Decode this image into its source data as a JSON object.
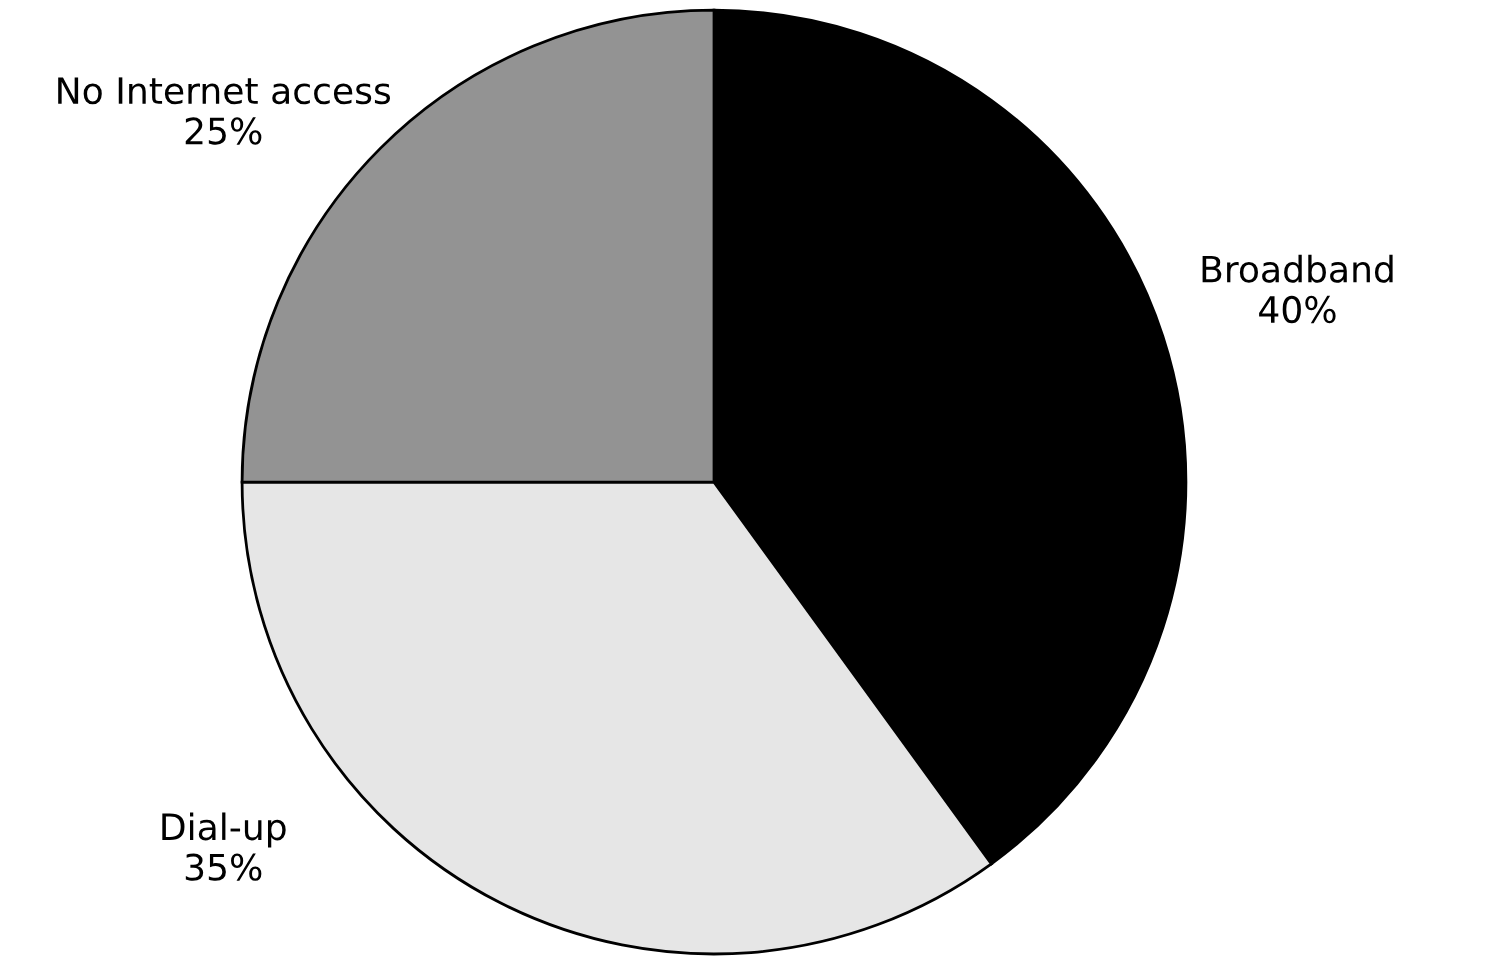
{
  "chart_data": {
    "type": "pie",
    "categories": [
      "Broadband",
      "Dial-up",
      "No Internet access"
    ],
    "values": [
      40,
      35,
      25
    ],
    "value_labels": [
      "40%",
      "35%",
      "25%"
    ],
    "colors": [
      "#000000",
      "#e6e6e6",
      "#939393"
    ],
    "legend": false
  }
}
